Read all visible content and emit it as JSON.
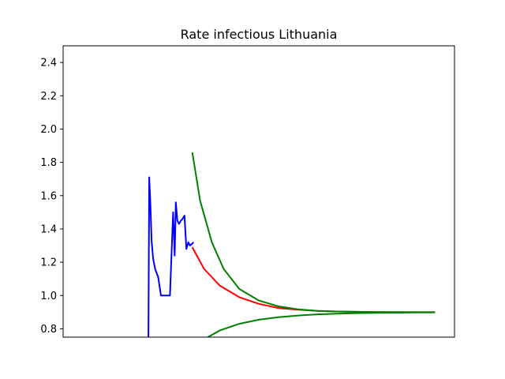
{
  "chart_data": {
    "type": "line",
    "title": "Rate infectious Lithuania",
    "xlabel": "",
    "ylabel": "",
    "ylim": [
      0.75,
      2.5
    ],
    "xlim": [
      0,
      100
    ],
    "x_ticks_shown": false,
    "y_ticks": [
      0.8,
      1.0,
      1.2,
      1.4,
      1.6,
      1.8,
      2.0,
      2.2,
      2.4
    ],
    "y_tick_labels": [
      "0.8",
      "1.0",
      "1.2",
      "1.4",
      "1.6",
      "1.8",
      "2.0",
      "2.2",
      "2.4"
    ],
    "grid": false,
    "series": [
      {
        "color": "#0000ff",
        "x": [
          21.8,
          22.0,
          22.3,
          22.6,
          23.0,
          23.5,
          24.3,
          25.0,
          26.0,
          27.3,
          28.1,
          28.5,
          28.8,
          29.2,
          29.6,
          30.1,
          30.5,
          31.0,
          31.5,
          32.0,
          32.4,
          32.9,
          33.3
        ],
        "values": [
          0.75,
          1.71,
          1.55,
          1.33,
          1.22,
          1.16,
          1.11,
          1.0,
          1.0,
          1.0,
          1.5,
          1.24,
          1.56,
          1.45,
          1.43,
          1.45,
          1.46,
          1.48,
          1.28,
          1.32,
          1.3,
          1.31,
          1.32
        ]
      },
      {
        "color": "#ff0000",
        "x": [
          33.0,
          36,
          40,
          45,
          50,
          55,
          60,
          65,
          70,
          75,
          80,
          85,
          90,
          95
        ],
        "values": [
          1.29,
          1.16,
          1.06,
          0.99,
          0.95,
          0.925,
          0.915,
          0.908,
          0.904,
          0.902,
          0.901,
          0.9,
          0.9,
          0.9
        ]
      },
      {
        "color": "#008000",
        "x": [
          33.0,
          35,
          38,
          41,
          45,
          50,
          55,
          60,
          65,
          70,
          75,
          80,
          85,
          90,
          95
        ],
        "values": [
          1.86,
          1.57,
          1.32,
          1.16,
          1.04,
          0.97,
          0.935,
          0.917,
          0.908,
          0.904,
          0.902,
          0.901,
          0.9,
          0.9,
          0.9
        ]
      },
      {
        "color": "#008000",
        "x": [
          37.0,
          40,
          45,
          50,
          55,
          60,
          65,
          70,
          75,
          80,
          85,
          90,
          95
        ],
        "values": [
          0.75,
          0.79,
          0.83,
          0.855,
          0.87,
          0.88,
          0.887,
          0.891,
          0.894,
          0.896,
          0.897,
          0.898,
          0.899
        ]
      }
    ]
  }
}
